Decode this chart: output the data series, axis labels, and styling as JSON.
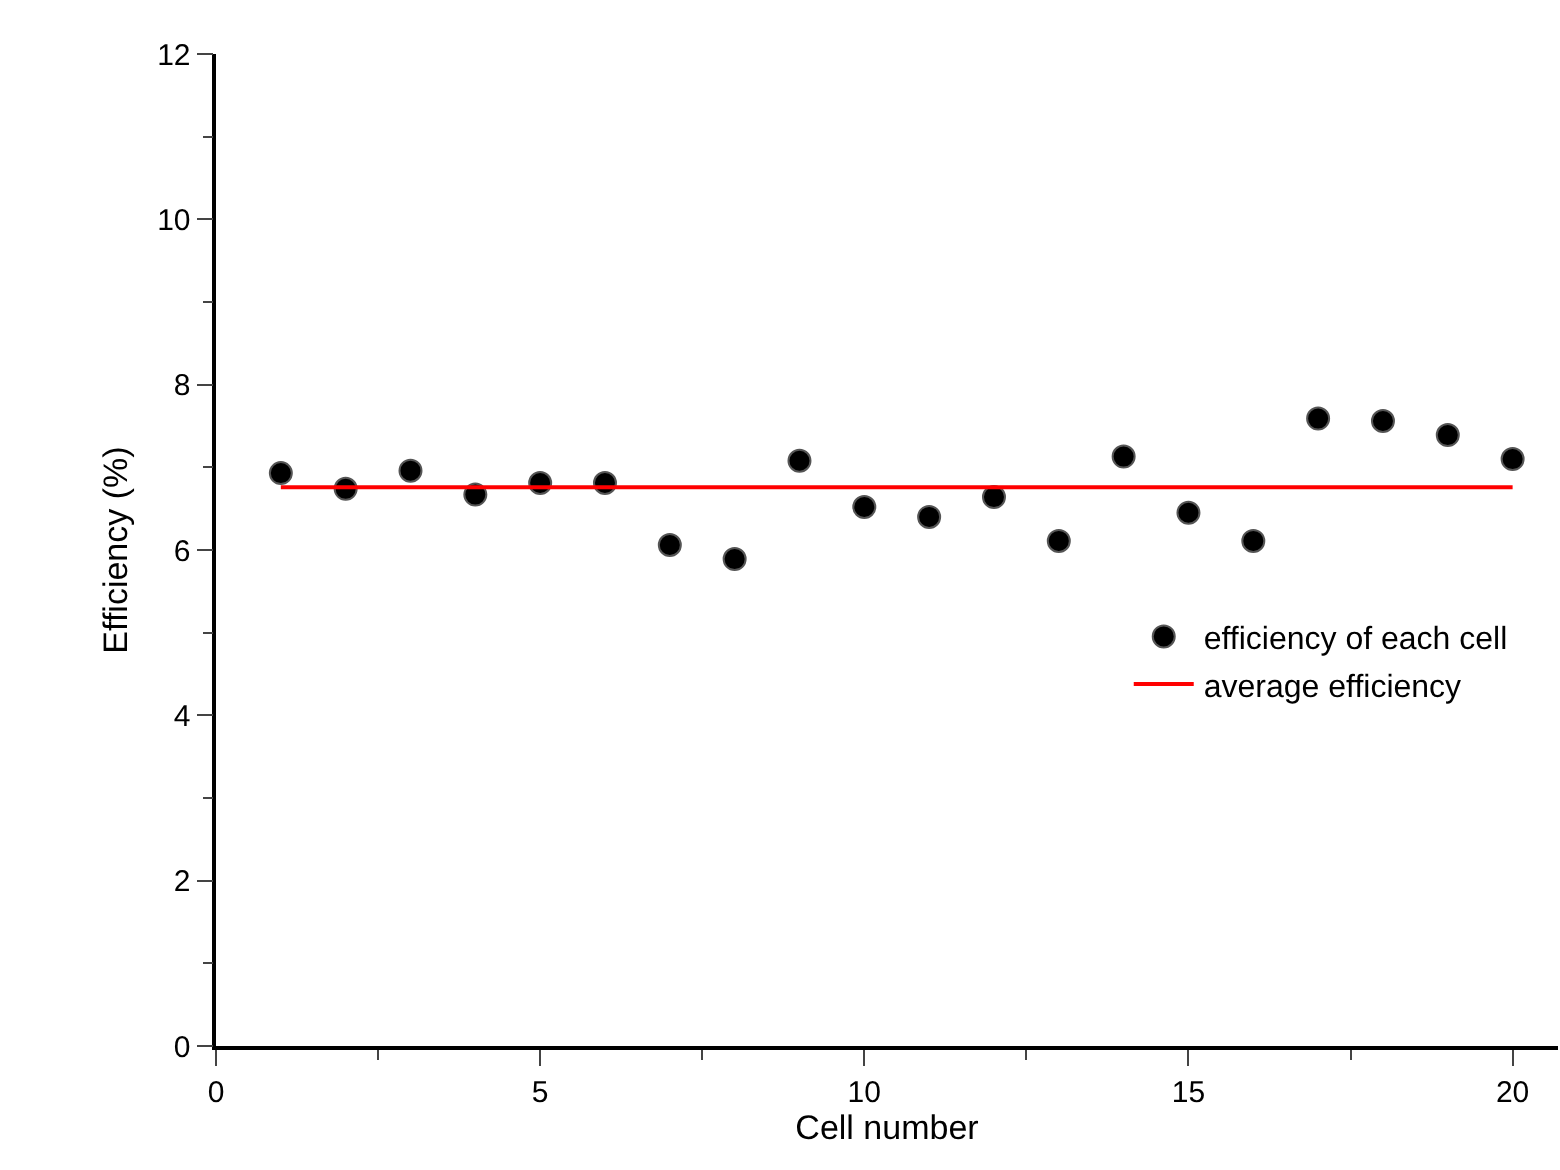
{
  "chart_data": {
    "type": "scatter",
    "xlabel": "Cell number",
    "ylabel": "Efficiency (%)",
    "x": [
      1,
      2,
      3,
      4,
      5,
      6,
      7,
      8,
      9,
      10,
      11,
      12,
      13,
      14,
      15,
      16,
      17,
      18,
      19,
      20
    ],
    "series": [
      {
        "name": "efficiency of each cell",
        "color": "#000000",
        "marker": "circle",
        "values": [
          6.93,
          6.74,
          6.96,
          6.67,
          6.81,
          6.81,
          6.06,
          5.89,
          7.08,
          6.52,
          6.4,
          6.64,
          6.11,
          7.13,
          6.45,
          6.11,
          7.59,
          7.56,
          7.39,
          7.1
        ]
      },
      {
        "name": "average efficiency",
        "type": "line",
        "color": "#ff0000",
        "marker": "none",
        "line_style": "solid",
        "x": [
          1,
          20
        ],
        "values": [
          6.76,
          6.76
        ]
      }
    ],
    "xlim": [
      0,
      20.7
    ],
    "xticks": [
      0,
      5,
      10,
      15,
      20
    ],
    "ylim": [
      0,
      12
    ],
    "yticks": [
      0,
      2,
      4,
      6,
      8,
      10,
      12
    ],
    "grid": false,
    "legend": "bottom right"
  }
}
